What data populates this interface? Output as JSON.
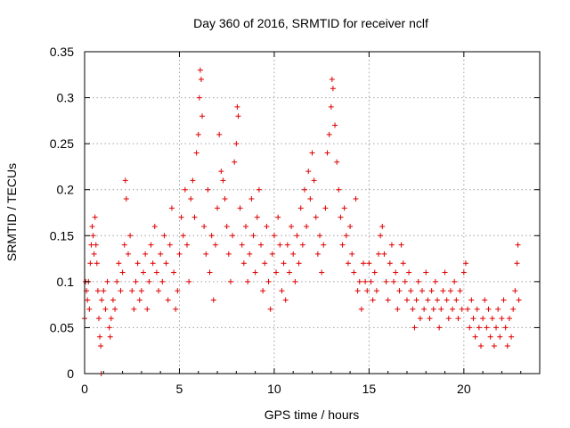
{
  "chart_data": {
    "type": "scatter",
    "title": "Day 360 of 2016, SRMTID for receiver nclf",
    "xlabel": "GPS time / hours",
    "ylabel": "SRMTID / TECUs",
    "xlim": [
      0,
      24
    ],
    "ylim": [
      0,
      0.35
    ],
    "xticks": [
      0,
      5,
      10,
      15,
      20
    ],
    "yticks": [
      0,
      0.05,
      0.1,
      0.15,
      0.2,
      0.25,
      0.3,
      0.35
    ],
    "xtick_labels": [
      "0",
      "5",
      "10",
      "15",
      "20"
    ],
    "ytick_labels": [
      "0",
      "0.05",
      "0.1",
      "0.15",
      "0.2",
      "0.25",
      "0.3",
      "0.35"
    ],
    "grid": true,
    "marker": "plus",
    "color": "#e00000",
    "x_range_of_data": [
      0.0,
      22.9
    ],
    "series": [
      {
        "points_note": "",
        "points": [
          [
            0.0,
            0.06
          ],
          [
            0.05,
            0.1
          ],
          [
            0.1,
            0.09
          ],
          [
            0.15,
            0.08
          ],
          [
            0.2,
            0.1
          ],
          [
            0.25,
            0.07
          ],
          [
            0.3,
            0.12
          ],
          [
            0.35,
            0.14
          ],
          [
            0.4,
            0.16
          ],
          [
            0.45,
            0.15
          ],
          [
            0.5,
            0.13
          ],
          [
            0.55,
            0.17
          ],
          [
            0.6,
            0.14
          ],
          [
            0.65,
            0.12
          ],
          [
            0.7,
            0.09
          ],
          [
            0.75,
            0.06
          ],
          [
            0.8,
            0.04
          ],
          [
            0.85,
            0.03
          ],
          [
            0.88,
            0.0
          ],
          [
            0.9,
            0.08
          ],
          [
            1.0,
            0.09
          ],
          [
            1.1,
            0.07
          ],
          [
            1.2,
            0.1
          ],
          [
            1.3,
            0.05
          ],
          [
            1.35,
            0.04
          ],
          [
            1.4,
            0.06
          ],
          [
            1.5,
            0.08
          ],
          [
            1.6,
            0.07
          ],
          [
            1.7,
            0.1
          ],
          [
            1.8,
            0.12
          ],
          [
            1.9,
            0.09
          ],
          [
            2.0,
            0.11
          ],
          [
            2.1,
            0.14
          ],
          [
            2.15,
            0.21
          ],
          [
            2.2,
            0.19
          ],
          [
            2.3,
            0.13
          ],
          [
            2.4,
            0.15
          ],
          [
            2.5,
            0.09
          ],
          [
            2.6,
            0.07
          ],
          [
            2.7,
            0.1
          ],
          [
            2.8,
            0.12
          ],
          [
            2.9,
            0.08
          ],
          [
            3.0,
            0.09
          ],
          [
            3.1,
            0.11
          ],
          [
            3.2,
            0.13
          ],
          [
            3.3,
            0.07
          ],
          [
            3.4,
            0.1
          ],
          [
            3.5,
            0.14
          ],
          [
            3.6,
            0.12
          ],
          [
            3.7,
            0.16
          ],
          [
            3.8,
            0.11
          ],
          [
            3.9,
            0.09
          ],
          [
            4.0,
            0.13
          ],
          [
            4.1,
            0.1
          ],
          [
            4.2,
            0.15
          ],
          [
            4.3,
            0.12
          ],
          [
            4.4,
            0.08
          ],
          [
            4.5,
            0.14
          ],
          [
            4.6,
            0.18
          ],
          [
            4.7,
            0.11
          ],
          [
            4.8,
            0.07
          ],
          [
            4.9,
            0.09
          ],
          [
            5.0,
            0.13
          ],
          [
            5.1,
            0.17
          ],
          [
            5.2,
            0.15
          ],
          [
            5.3,
            0.2
          ],
          [
            5.4,
            0.14
          ],
          [
            5.5,
            0.1
          ],
          [
            5.6,
            0.19
          ],
          [
            5.7,
            0.21
          ],
          [
            5.8,
            0.17
          ],
          [
            5.9,
            0.24
          ],
          [
            6.0,
            0.26
          ],
          [
            6.05,
            0.3
          ],
          [
            6.1,
            0.33
          ],
          [
            6.15,
            0.32
          ],
          [
            6.2,
            0.28
          ],
          [
            6.3,
            0.16
          ],
          [
            6.4,
            0.13
          ],
          [
            6.5,
            0.2
          ],
          [
            6.6,
            0.11
          ],
          [
            6.7,
            0.15
          ],
          [
            6.8,
            0.08
          ],
          [
            6.9,
            0.14
          ],
          [
            7.0,
            0.18
          ],
          [
            7.1,
            0.26
          ],
          [
            7.2,
            0.22
          ],
          [
            7.3,
            0.21
          ],
          [
            7.4,
            0.19
          ],
          [
            7.5,
            0.16
          ],
          [
            7.6,
            0.13
          ],
          [
            7.7,
            0.1
          ],
          [
            7.8,
            0.15
          ],
          [
            7.9,
            0.23
          ],
          [
            8.0,
            0.25
          ],
          [
            8.05,
            0.29
          ],
          [
            8.1,
            0.28
          ],
          [
            8.2,
            0.18
          ],
          [
            8.3,
            0.14
          ],
          [
            8.4,
            0.12
          ],
          [
            8.5,
            0.16
          ],
          [
            8.6,
            0.1
          ],
          [
            8.7,
            0.13
          ],
          [
            8.8,
            0.19
          ],
          [
            8.9,
            0.15
          ],
          [
            9.0,
            0.11
          ],
          [
            9.1,
            0.17
          ],
          [
            9.2,
            0.2
          ],
          [
            9.3,
            0.14
          ],
          [
            9.4,
            0.09
          ],
          [
            9.5,
            0.12
          ],
          [
            9.6,
            0.16
          ],
          [
            9.7,
            0.1
          ],
          [
            9.8,
            0.07
          ],
          [
            9.9,
            0.13
          ],
          [
            10.0,
            0.15
          ],
          [
            10.1,
            0.11
          ],
          [
            10.2,
            0.17
          ],
          [
            10.3,
            0.14
          ],
          [
            10.4,
            0.09
          ],
          [
            10.5,
            0.12
          ],
          [
            10.6,
            0.08
          ],
          [
            10.7,
            0.14
          ],
          [
            10.8,
            0.11
          ],
          [
            10.9,
            0.16
          ],
          [
            11.0,
            0.13
          ],
          [
            11.1,
            0.1
          ],
          [
            11.2,
            0.15
          ],
          [
            11.3,
            0.12
          ],
          [
            11.4,
            0.18
          ],
          [
            11.5,
            0.14
          ],
          [
            11.6,
            0.2
          ],
          [
            11.7,
            0.16
          ],
          [
            11.8,
            0.22
          ],
          [
            11.9,
            0.19
          ],
          [
            12.0,
            0.24
          ],
          [
            12.1,
            0.21
          ],
          [
            12.2,
            0.17
          ],
          [
            12.3,
            0.13
          ],
          [
            12.4,
            0.15
          ],
          [
            12.5,
            0.11
          ],
          [
            12.6,
            0.14
          ],
          [
            12.7,
            0.18
          ],
          [
            12.8,
            0.24
          ],
          [
            12.9,
            0.26
          ],
          [
            13.0,
            0.29
          ],
          [
            13.05,
            0.32
          ],
          [
            13.1,
            0.31
          ],
          [
            13.2,
            0.27
          ],
          [
            13.3,
            0.23
          ],
          [
            13.4,
            0.2
          ],
          [
            13.5,
            0.17
          ],
          [
            13.6,
            0.14
          ],
          [
            13.7,
            0.18
          ],
          [
            13.8,
            0.15
          ],
          [
            13.9,
            0.12
          ],
          [
            14.0,
            0.16
          ],
          [
            14.1,
            0.13
          ],
          [
            14.2,
            0.11
          ],
          [
            14.3,
            0.19
          ],
          [
            14.4,
            0.09
          ],
          [
            14.5,
            0.1
          ],
          [
            14.6,
            0.07
          ],
          [
            14.7,
            0.12
          ],
          [
            14.8,
            0.1
          ],
          [
            14.9,
            0.09
          ],
          [
            15.0,
            0.12
          ],
          [
            15.1,
            0.1
          ],
          [
            15.2,
            0.08
          ],
          [
            15.3,
            0.11
          ],
          [
            15.4,
            0.09
          ],
          [
            15.5,
            0.13
          ],
          [
            15.6,
            0.15
          ],
          [
            15.7,
            0.16
          ],
          [
            15.8,
            0.13
          ],
          [
            15.9,
            0.1
          ],
          [
            16.0,
            0.08
          ],
          [
            16.1,
            0.12
          ],
          [
            16.2,
            0.14
          ],
          [
            16.3,
            0.1
          ],
          [
            16.4,
            0.11
          ],
          [
            16.5,
            0.07
          ],
          [
            16.6,
            0.09
          ],
          [
            16.7,
            0.14
          ],
          [
            16.8,
            0.12
          ],
          [
            16.9,
            0.1
          ],
          [
            17.0,
            0.08
          ],
          [
            17.1,
            0.11
          ],
          [
            17.2,
            0.09
          ],
          [
            17.3,
            0.07
          ],
          [
            17.4,
            0.05
          ],
          [
            17.5,
            0.08
          ],
          [
            17.6,
            0.1
          ],
          [
            17.7,
            0.06
          ],
          [
            17.8,
            0.09
          ],
          [
            17.9,
            0.07
          ],
          [
            18.0,
            0.11
          ],
          [
            18.1,
            0.08
          ],
          [
            18.2,
            0.06
          ],
          [
            18.3,
            0.09
          ],
          [
            18.4,
            0.07
          ],
          [
            18.5,
            0.1
          ],
          [
            18.6,
            0.08
          ],
          [
            18.7,
            0.05
          ],
          [
            18.8,
            0.07
          ],
          [
            18.9,
            0.09
          ],
          [
            19.0,
            0.11
          ],
          [
            19.1,
            0.08
          ],
          [
            19.2,
            0.06
          ],
          [
            19.3,
            0.09
          ],
          [
            19.4,
            0.07
          ],
          [
            19.5,
            0.1
          ],
          [
            19.6,
            0.08
          ],
          [
            19.7,
            0.06
          ],
          [
            19.8,
            0.09
          ],
          [
            19.9,
            0.07
          ],
          [
            20.0,
            0.11
          ],
          [
            20.1,
            0.12
          ],
          [
            20.2,
            0.07
          ],
          [
            20.3,
            0.05
          ],
          [
            20.4,
            0.08
          ],
          [
            20.5,
            0.06
          ],
          [
            20.6,
            0.04
          ],
          [
            20.7,
            0.07
          ],
          [
            20.8,
            0.05
          ],
          [
            20.9,
            0.03
          ],
          [
            21.0,
            0.06
          ],
          [
            21.1,
            0.08
          ],
          [
            21.2,
            0.05
          ],
          [
            21.3,
            0.07
          ],
          [
            21.4,
            0.04
          ],
          [
            21.5,
            0.06
          ],
          [
            21.6,
            0.03
          ],
          [
            21.7,
            0.05
          ],
          [
            21.8,
            0.07
          ],
          [
            21.9,
            0.04
          ],
          [
            22.0,
            0.06
          ],
          [
            22.1,
            0.08
          ],
          [
            22.2,
            0.05
          ],
          [
            22.3,
            0.03
          ],
          [
            22.4,
            0.06
          ],
          [
            22.5,
            0.04
          ],
          [
            22.6,
            0.07
          ],
          [
            22.7,
            0.09
          ],
          [
            22.8,
            0.12
          ],
          [
            22.85,
            0.14
          ],
          [
            22.9,
            0.08
          ]
        ]
      }
    ]
  }
}
